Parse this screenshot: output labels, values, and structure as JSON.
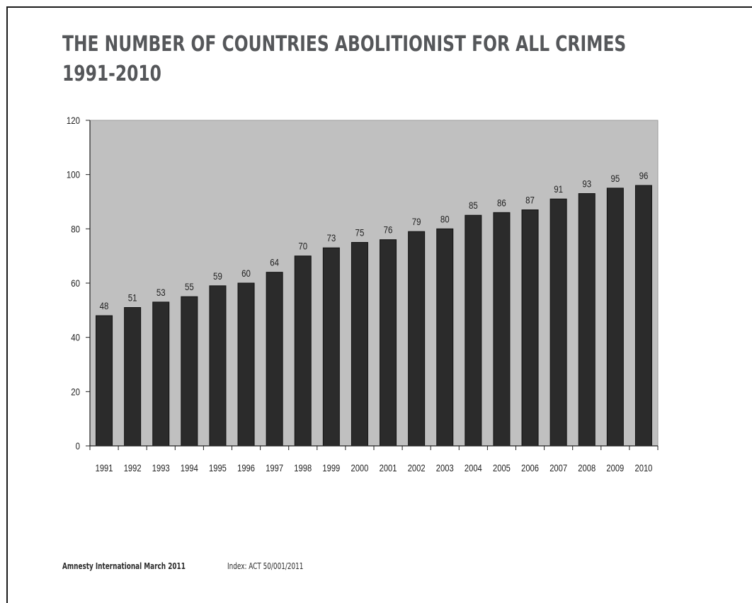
{
  "title_lines": [
    "THE NUMBER OF COUNTRIES ABOLITIONIST FOR ALL CRIMES",
    "1991-2010"
  ],
  "footer": {
    "org": "Amnesty International March 2011",
    "index": "Index: ACT 50/001/2011"
  },
  "chart_data": {
    "type": "bar",
    "title": "THE NUMBER OF COUNTRIES ABOLITIONIST FOR ALL CRIMES 1991-2010",
    "xlabel": "",
    "ylabel": "",
    "categories": [
      "1991",
      "1992",
      "1993",
      "1994",
      "1995",
      "1996",
      "1997",
      "1998",
      "1999",
      "2000",
      "2001",
      "2002",
      "2003",
      "2004",
      "2005",
      "2006",
      "2007",
      "2008",
      "2009",
      "2010"
    ],
    "values": [
      48,
      51,
      53,
      55,
      59,
      60,
      64,
      70,
      73,
      75,
      76,
      79,
      80,
      85,
      86,
      87,
      91,
      93,
      95,
      96
    ],
    "ylim": [
      0,
      120
    ],
    "yticks": [
      0,
      20,
      40,
      60,
      80,
      100,
      120
    ],
    "data_labels": true,
    "grid": false,
    "legend": "none",
    "colors": {
      "bar": "#2b2b2b",
      "plot_background": "#c0c0c0",
      "axis": "#222222",
      "label": "#222222"
    }
  }
}
